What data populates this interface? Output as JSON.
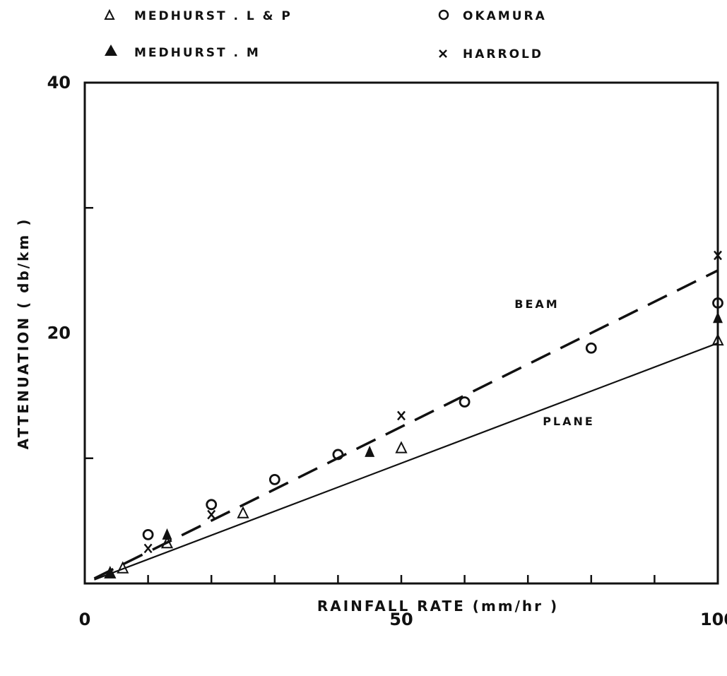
{
  "chart_data": {
    "type": "scatter",
    "xlabel": "RAINFALL RATE (mm/hr )",
    "ylabel": "ATTENUATION ( db/km )",
    "xlim": [
      0,
      100
    ],
    "ylim": [
      0,
      40
    ],
    "x_tick_labels": [
      {
        "value": 0,
        "label": "0"
      },
      {
        "value": 50,
        "label": "50"
      },
      {
        "value": 100,
        "label": "100"
      }
    ],
    "y_tick_labels": [
      {
        "value": 20,
        "label": "20"
      },
      {
        "value": 40,
        "label": "40"
      }
    ],
    "x_minor_ticks": [
      10,
      20,
      30,
      40,
      50,
      60,
      70,
      80,
      90
    ],
    "y_minor_ticks": [
      10,
      30
    ],
    "grid": false,
    "legend_position": "top",
    "lines": [
      {
        "label": "BEAM",
        "style": "dashed",
        "x": [
          1.5,
          100
        ],
        "y": [
          0.4,
          25.0
        ]
      },
      {
        "label": "PLANE",
        "style": "solid",
        "x": [
          1.5,
          100
        ],
        "y": [
          0.3,
          19.2
        ]
      }
    ],
    "series": [
      {
        "name": "MEDHURST . L & P",
        "marker": "open-triangle",
        "x": [
          4,
          6,
          13,
          25,
          50,
          100
        ],
        "y": [
          0.8,
          1.2,
          3.2,
          5.6,
          10.8,
          19.4
        ]
      },
      {
        "name": "MEDHURST . M",
        "marker": "filled-triangle",
        "x": [
          4,
          13,
          45,
          100
        ],
        "y": [
          0.9,
          3.9,
          10.5,
          21.2
        ]
      },
      {
        "name": "OKAMURA",
        "marker": "open-circle",
        "x": [
          10,
          20,
          30,
          40,
          60,
          80,
          100
        ],
        "y": [
          3.9,
          6.3,
          8.3,
          10.3,
          14.5,
          18.8,
          22.4
        ]
      },
      {
        "name": "HARROLD",
        "marker": "cross",
        "x": [
          10,
          20,
          50,
          100
        ],
        "y": [
          2.8,
          5.5,
          13.4,
          26.2
        ]
      }
    ]
  }
}
